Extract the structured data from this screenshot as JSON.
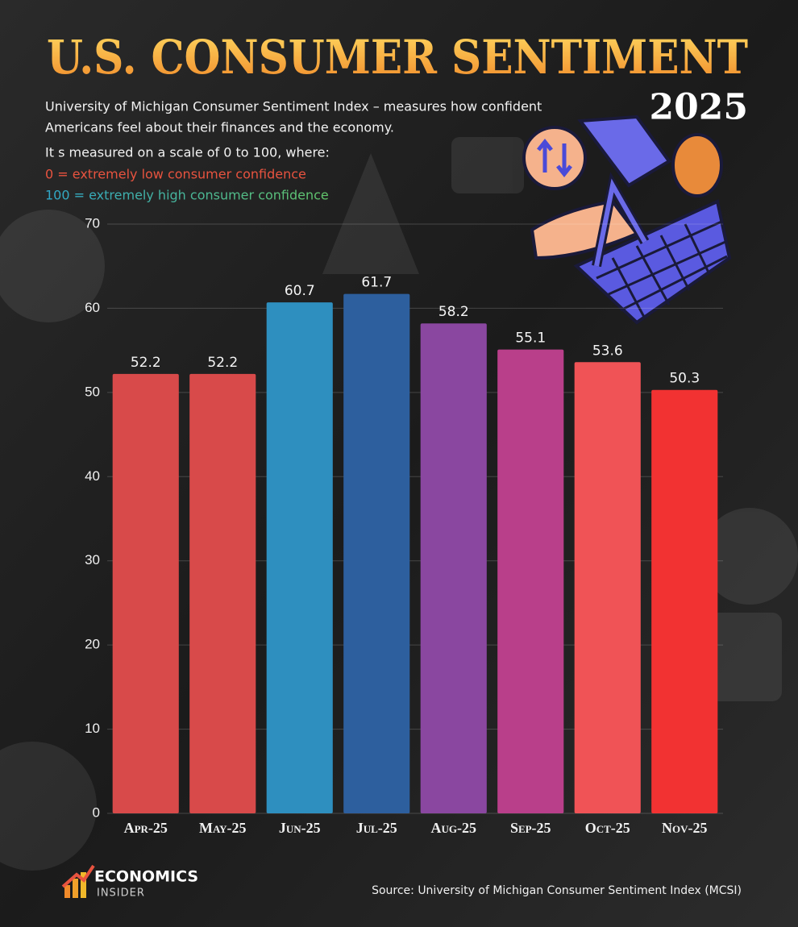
{
  "chart_data": {
    "type": "bar",
    "title": "U.S. CONSUMER SENTIMENT",
    "year": "2025",
    "subtitle": [
      "University of Michigan Consumer Sentiment Index – measures how confident",
      "Americans feel about their finances and the economy."
    ],
    "scale_note": "It s measured on a scale of 0 to 100, where:",
    "low_note": "0 = extremely low consumer confidence",
    "high_note": "100 = extremely high consumer confidence",
    "categories": [
      "Apr-25",
      "May-25",
      "Jun-25",
      "Jul-25",
      "Aug-25",
      "Sep-25",
      "Oct-25",
      "Nov-25"
    ],
    "values": [
      52.2,
      52.2,
      60.7,
      61.7,
      58.2,
      55.1,
      53.6,
      50.3
    ],
    "colors": [
      "#d84a4a",
      "#d84a4a",
      "#2e8fbf",
      "#2d5f9e",
      "#8a47a0",
      "#b93f8a",
      "#f05356",
      "#f23232"
    ],
    "ylim": [
      0,
      70
    ],
    "yticks": [
      0,
      10,
      20,
      30,
      40,
      50,
      60,
      70
    ],
    "grid": true,
    "source": "Source: University of Michigan Consumer Sentiment Index (MCSI)",
    "logo": [
      "ECONOMICS",
      "INSIDER"
    ]
  }
}
